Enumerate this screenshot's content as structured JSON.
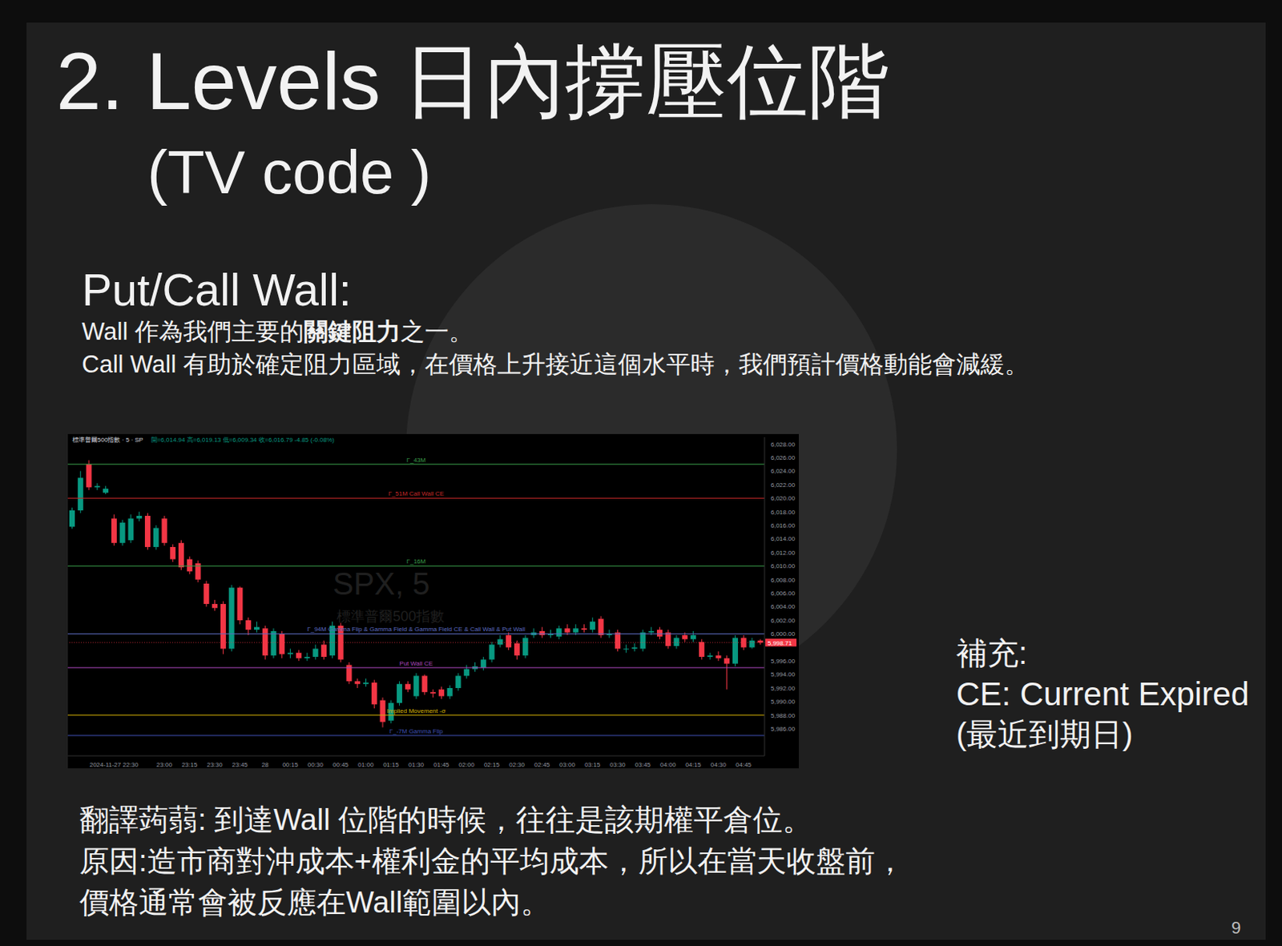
{
  "title": "2. Levels 日內撐壓位階",
  "subtitle": "(TV code )",
  "section": "Put/Call Wall:",
  "paragraphs": [
    {
      "text": "Wall 作為我們主要的關鍵阻力之一。",
      "emphasis": "關鍵阻力"
    },
    {
      "text": "Call Wall 有助於確定阻力區域，在價格上升接近這個水平時，我們預計價格動能會減緩。"
    }
  ],
  "chart_data": {
    "type": "candlestick",
    "title": "標準普爾500指數 · 5 · SP",
    "subtitle": "開=6,014.94 高=6,019.13 低=6,009.34 收=6,016.79 -4.85 (-0.08%)",
    "watermark": [
      "SPX, 5",
      "標準普爾500指數"
    ],
    "categories": [
      null,
      null,
      null,
      null,
      null,
      "2024-11-27 22:30",
      null,
      null,
      null,
      null,
      null,
      "23:00",
      null,
      null,
      "23:15",
      null,
      null,
      "23:30",
      null,
      null,
      "23:45",
      null,
      null,
      "28",
      null,
      null,
      "00:15",
      null,
      null,
      "00:30",
      null,
      null,
      "00:45",
      null,
      null,
      "01:00",
      null,
      null,
      "01:15",
      null,
      null,
      "01:30",
      null,
      null,
      "01:45",
      null,
      null,
      "02:00",
      null,
      null,
      "02:15",
      null,
      null,
      "02:30",
      null,
      null,
      "02:45",
      null,
      null,
      "03:00",
      null,
      null,
      "03:15",
      null,
      null,
      "03:30",
      null,
      null,
      "03:45",
      null,
      null,
      "04:00",
      null,
      null,
      "04:15",
      null,
      null,
      "04:30",
      null,
      null,
      "04:45",
      null,
      null
    ],
    "open": [
      6015.8,
      6018.2,
      6025.0,
      6021.6,
      6020.8,
      6017.0,
      6013.4,
      6013.8,
      6017.0,
      6017.4,
      6012.8,
      6017.0,
      6012.8,
      6013.4,
      6011.0,
      6010.4,
      6007.4,
      6004.4,
      6004.4,
      5997.8,
      6006.8,
      6002.0,
      6000.6,
      6000.8,
      5996.8,
      6000.0,
      5997.0,
      5997.2,
      5996.4,
      5996.6,
      5998.4,
      5996.8,
      6001.2,
      5995.4,
      5993.0,
      5992.6,
      5992.8,
      5990.2,
      5987.2,
      5989.8,
      5992.6,
      5990.8,
      5993.8,
      5991.4,
      5991.8,
      5990.8,
      5992.0,
      5993.8,
      5994.8,
      5995.0,
      5996.2,
      5998.4,
      5999.8,
      5998.6,
      5996.8,
      5999.8,
      6000.4,
      5999.8,
      5999.6,
      6000.8,
      6000.2,
      6000.8,
      6000.6,
      6002.2,
      5999.8,
      6000.2,
      5997.8,
      5997.8,
      5997.8,
      6000.2,
      6000.6,
      6000.2,
      5998.2,
      5999.8,
      5999.2,
      5998.8,
      5996.6,
      5996.8,
      5996.4,
      5995.6,
      5999.4,
      5998.0,
      5999.0
    ],
    "high": [
      6018.6,
      6024.0,
      6025.6,
      6022.2,
      6021.8,
      6017.6,
      6016.8,
      6017.6,
      6018.0,
      6017.8,
      6016.0,
      6017.4,
      6013.2,
      6013.8,
      6011.4,
      6010.8,
      6007.8,
      6005.0,
      6004.8,
      6007.2,
      6007.0,
      6002.4,
      6001.8,
      6001.2,
      6000.8,
      6000.4,
      5997.8,
      5997.6,
      5997.2,
      5998.4,
      5999.0,
      6001.8,
      6001.6,
      5995.8,
      5993.4,
      5993.4,
      5993.2,
      5990.6,
      5990.2,
      5993.0,
      5993.0,
      5994.2,
      5994.0,
      5991.8,
      5992.2,
      5992.4,
      5994.2,
      5995.4,
      5995.8,
      5996.6,
      5998.8,
      5999.8,
      6000.2,
      5999.0,
      5999.8,
      6000.8,
      6001.0,
      6000.6,
      6001.2,
      6001.4,
      6001.4,
      6001.4,
      6002.4,
      6002.6,
      6000.6,
      6000.6,
      5998.4,
      5998.6,
      6000.6,
      6001.0,
      6001.0,
      6000.6,
      5999.8,
      6000.2,
      6000.4,
      5999.2,
      5997.2,
      5997.4,
      5996.8,
      5999.8,
      5999.8,
      5999.4,
      5999.2
    ],
    "low": [
      6015.5,
      6017.8,
      6021.2,
      6021.2,
      6020.6,
      6013.0,
      6013.0,
      6013.4,
      6016.6,
      6012.4,
      6012.4,
      6013.0,
      6010.6,
      6009.4,
      6008.8,
      6007.6,
      6004.0,
      6003.4,
      5997.0,
      5997.4,
      6001.4,
      5999.8,
      6000.2,
      5996.2,
      5996.4,
      5996.4,
      5996.4,
      5996.0,
      5996.0,
      5996.2,
      5996.2,
      5996.4,
      5995.8,
      5992.6,
      5992.0,
      5992.2,
      5989.0,
      5986.2,
      5986.8,
      5989.4,
      5991.4,
      5990.4,
      5991.0,
      5990.6,
      5990.4,
      5990.4,
      5991.6,
      5993.4,
      5994.4,
      5994.6,
      5995.8,
      5998.0,
      5997.6,
      5996.2,
      5996.4,
      5999.4,
      5999.4,
      5999.4,
      5999.2,
      5999.8,
      5999.8,
      6000.2,
      6000.2,
      5999.4,
      5999.4,
      5997.4,
      5997.2,
      5997.4,
      5997.4,
      5999.8,
      5999.2,
      5997.8,
      5997.8,
      5998.8,
      5998.8,
      5996.2,
      5996.2,
      5996.0,
      5991.8,
      5995.2,
      5997.6,
      5997.8,
      5998.4
    ],
    "close": [
      6018.2,
      6023.0,
      6021.6,
      6021.8,
      6021.4,
      6013.4,
      6016.4,
      6017.0,
      6017.4,
      6012.8,
      6015.6,
      6013.4,
      6011.0,
      6009.8,
      6009.2,
      6008.0,
      6004.4,
      6003.8,
      5997.8,
      6006.8,
      6002.0,
      6000.6,
      6001.0,
      5996.8,
      6000.4,
      5997.0,
      5997.2,
      5996.4,
      5996.6,
      5997.8,
      5996.6,
      6001.2,
      5996.2,
      5993.0,
      5992.6,
      5992.8,
      5989.6,
      5987.0,
      5989.8,
      5992.6,
      5991.8,
      5993.8,
      5991.4,
      5991.2,
      5990.8,
      5992.0,
      5993.8,
      5994.8,
      5995.2,
      5996.2,
      5998.4,
      5999.2,
      5998.0,
      5996.8,
      5999.4,
      6000.2,
      5999.8,
      6000.0,
      6000.8,
      6000.2,
      6000.8,
      6000.6,
      6001.8,
      5999.8,
      6000.0,
      5997.8,
      5997.8,
      5998.0,
      6000.2,
      6000.4,
      5999.6,
      5998.2,
      5999.4,
      5999.2,
      5999.8,
      5996.6,
      5996.8,
      5996.4,
      5995.6,
      5999.4,
      5998.0,
      5999.0,
      5998.7
    ],
    "ylim": [
      5982,
      6029
    ],
    "yticks": [
      {
        "value": 5986,
        "label": "5,986.00"
      },
      {
        "value": 5988,
        "label": "5,988.00"
      },
      {
        "value": 5990,
        "label": "5,990.00"
      },
      {
        "value": 5992,
        "label": "5,992.00"
      },
      {
        "value": 5994,
        "label": "5,994.00"
      },
      {
        "value": 5996,
        "label": "5,996.00"
      },
      {
        "value": 6000,
        "label": "6,000.00"
      },
      {
        "value": 6002,
        "label": "6,002.00"
      },
      {
        "value": 6004,
        "label": "6,004.00"
      },
      {
        "value": 6006,
        "label": "6,006.00"
      },
      {
        "value": 6008,
        "label": "6,008.00"
      },
      {
        "value": 6010,
        "label": "6,010.00"
      },
      {
        "value": 6012,
        "label": "6,012.00"
      },
      {
        "value": 6014,
        "label": "6,014.00"
      },
      {
        "value": 6016,
        "label": "6,016.00"
      },
      {
        "value": 6018,
        "label": "6,018.00"
      },
      {
        "value": 6020,
        "label": "6,020.00"
      },
      {
        "value": 6022,
        "label": "6,022.00"
      },
      {
        "value": 6024,
        "label": "6,024.00"
      },
      {
        "value": 6026,
        "label": "6,026.00"
      },
      {
        "value": 6028,
        "label": "6,028.00"
      }
    ],
    "grid": false,
    "levels": [
      {
        "name": "Γ_43M",
        "value": 6025,
        "color": "#3a9d4a"
      },
      {
        "name": "Γ_51M  Call Wall CE",
        "value": 6020,
        "color": "#c62828"
      },
      {
        "name": "Γ_16M",
        "value": 6010,
        "color": "#3a9d4a"
      },
      {
        "name": "Γ_94M  Gamma Flip & Gamma Field & Gamma Field CE & Call Wall & Put Wall",
        "value": 6000,
        "color": "#5c6bc0"
      },
      {
        "name": "Put Wall CE",
        "value": 5995,
        "color": "#ab47bc"
      },
      {
        "name": "Implied Movement -σ",
        "value": 5988,
        "color": "#d4b106"
      },
      {
        "name": "Γ_-7M  Gamma Flip",
        "value": 5985,
        "color": "#3f51b5"
      }
    ],
    "last_price": {
      "value": 5998.71,
      "label": "5,998.71",
      "color": "#f23645"
    }
  },
  "note": [
    "補充:",
    "CE: Current Expired",
    "(最近到期日)"
  ],
  "footnote": [
    "翻譯蒟蒻: 到達Wall 位階的時候，往往是該期權平倉位。",
    "原因:造市商對沖成本+權利金的平均成本，所以在當天收盤前，",
    "價格通常會被反應在Wall範圍以內。"
  ],
  "page": "9"
}
